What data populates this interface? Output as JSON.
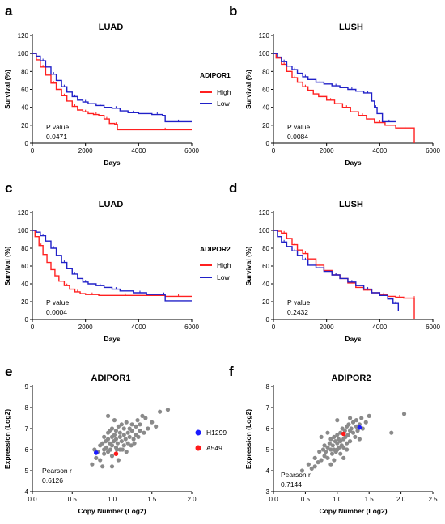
{
  "figure": {
    "legend_adipor1": {
      "title": "ADIPOR1",
      "items": [
        {
          "label": "High",
          "color": "#ff2020"
        },
        {
          "label": "Low",
          "color": "#2020c8"
        }
      ]
    },
    "legend_adipor2": {
      "title": "ADIPOR2",
      "items": [
        {
          "label": "High",
          "color": "#ff2020"
        },
        {
          "label": "Low",
          "color": "#2020c8"
        }
      ]
    },
    "legend_cells": {
      "items": [
        {
          "label": "H1299",
          "color": "#1a1aff"
        },
        {
          "label": "A549",
          "color": "#ff1a1a"
        }
      ]
    }
  },
  "chart_data": [
    {
      "panel": "a",
      "type": "line",
      "title": "LUAD",
      "xlabel": "Days",
      "ylabel": "Survival (%)",
      "xlim": [
        0,
        6000
      ],
      "ylim": [
        0,
        120
      ],
      "xticks": [
        0,
        2000,
        4000,
        6000
      ],
      "yticks": [
        0,
        20,
        40,
        60,
        80,
        100,
        120
      ],
      "annotation": {
        "label": "P value",
        "value": "0.0471"
      },
      "series": [
        {
          "name": "High",
          "color": "#ff2020",
          "x": [
            0,
            150,
            300,
            500,
            700,
            900,
            1100,
            1300,
            1500,
            1700,
            1900,
            2100,
            2300,
            2500,
            2700,
            2900,
            3100,
            3200,
            4000,
            6000
          ],
          "y": [
            100,
            93,
            85,
            76,
            67,
            60,
            53,
            47,
            41,
            37,
            35,
            33,
            32,
            31,
            27,
            22,
            21,
            15,
            15,
            15
          ]
        },
        {
          "name": "Low",
          "color": "#2020c8",
          "x": [
            0,
            150,
            300,
            500,
            700,
            900,
            1100,
            1300,
            1500,
            1700,
            1900,
            2100,
            2400,
            2700,
            3000,
            3300,
            3600,
            4000,
            4500,
            4900,
            5000,
            6000
          ],
          "y": [
            100,
            97,
            92,
            85,
            77,
            70,
            63,
            57,
            52,
            48,
            46,
            44,
            42,
            40,
            39,
            36,
            34,
            33,
            32,
            31,
            24,
            24
          ]
        }
      ]
    },
    {
      "panel": "b",
      "type": "line",
      "title": "LUSH",
      "xlabel": "Days",
      "ylabel": "Survival (%)",
      "xlim": [
        0,
        6000
      ],
      "ylim": [
        0,
        120
      ],
      "xticks": [
        0,
        2000,
        4000,
        6000
      ],
      "yticks": [
        0,
        20,
        40,
        60,
        80,
        100,
        120
      ],
      "annotation": {
        "label": "P value",
        "value": "0.0084"
      },
      "series": [
        {
          "name": "High",
          "color": "#ff2020",
          "x": [
            0,
            100,
            300,
            500,
            700,
            900,
            1100,
            1300,
            1500,
            1700,
            2000,
            2300,
            2600,
            2900,
            3200,
            3500,
            3800,
            4200,
            4600,
            5300,
            5300
          ],
          "y": [
            100,
            95,
            88,
            80,
            73,
            68,
            63,
            59,
            55,
            52,
            48,
            44,
            40,
            35,
            31,
            27,
            23,
            20,
            17,
            14,
            0
          ]
        },
        {
          "name": "Low",
          "color": "#2020c8",
          "x": [
            0,
            150,
            300,
            500,
            700,
            900,
            1100,
            1300,
            1600,
            1900,
            2200,
            2500,
            2800,
            3100,
            3400,
            3700,
            3800,
            3900,
            4100,
            4600
          ],
          "y": [
            100,
            96,
            91,
            86,
            82,
            78,
            74,
            71,
            68,
            66,
            64,
            62,
            60,
            58,
            56,
            47,
            40,
            33,
            24,
            24
          ]
        }
      ]
    },
    {
      "panel": "c",
      "type": "line",
      "title": "LUAD",
      "xlabel": "Days",
      "ylabel": "Survival (%)",
      "xlim": [
        0,
        6000
      ],
      "ylim": [
        0,
        120
      ],
      "xticks": [
        0,
        2000,
        4000,
        6000
      ],
      "yticks": [
        0,
        20,
        40,
        60,
        80,
        100,
        120
      ],
      "annotation": {
        "label": "P value",
        "value": "0.0004"
      },
      "series": [
        {
          "name": "High",
          "color": "#ff2020",
          "x": [
            0,
            100,
            250,
            400,
            550,
            700,
            850,
            1000,
            1200,
            1400,
            1600,
            1800,
            2000,
            2500,
            3000,
            4000,
            5000,
            6000
          ],
          "y": [
            100,
            93,
            83,
            73,
            64,
            56,
            49,
            43,
            38,
            34,
            31,
            29,
            28,
            27,
            27,
            27,
            26,
            26
          ]
        },
        {
          "name": "Low",
          "color": "#2020c8",
          "x": [
            0,
            150,
            300,
            500,
            700,
            900,
            1100,
            1300,
            1500,
            1700,
            1900,
            2100,
            2400,
            2700,
            3000,
            3300,
            3800,
            4300,
            4900,
            5000,
            6000
          ],
          "y": [
            100,
            98,
            94,
            88,
            80,
            72,
            64,
            57,
            51,
            46,
            42,
            40,
            38,
            36,
            34,
            32,
            30,
            28,
            28,
            21,
            21
          ]
        }
      ]
    },
    {
      "panel": "d",
      "type": "line",
      "title": "LUSH",
      "xlabel": "Days",
      "ylabel": "Survival (%)",
      "xlim": [
        0,
        6000
      ],
      "ylim": [
        0,
        120
      ],
      "xticks": [
        0,
        2000,
        4000,
        6000
      ],
      "yticks": [
        0,
        20,
        40,
        60,
        80,
        100,
        120
      ],
      "annotation": {
        "label": "P value",
        "value": "0.2432"
      },
      "series": [
        {
          "name": "High",
          "color": "#ff2020",
          "x": [
            0,
            150,
            300,
            500,
            700,
            900,
            1100,
            1300,
            1600,
            1900,
            2200,
            2500,
            2800,
            3100,
            3400,
            3700,
            4000,
            4300,
            4600,
            4900,
            5300,
            5300
          ],
          "y": [
            100,
            99,
            97,
            91,
            84,
            78,
            74,
            68,
            61,
            55,
            50,
            46,
            41,
            36,
            33,
            30,
            28,
            26,
            25,
            24,
            24,
            0
          ]
        },
        {
          "name": "Low",
          "color": "#2020c8",
          "x": [
            0,
            150,
            300,
            500,
            700,
            900,
            1100,
            1300,
            1600,
            1900,
            2200,
            2500,
            2800,
            3100,
            3400,
            3700,
            4000,
            4300,
            4500,
            4700
          ],
          "y": [
            100,
            93,
            87,
            82,
            77,
            72,
            67,
            61,
            58,
            54,
            50,
            46,
            42,
            38,
            34,
            30,
            27,
            23,
            18,
            10
          ]
        }
      ]
    },
    {
      "panel": "e",
      "type": "scatter",
      "title": "ADIPOR1",
      "xlabel": "Copy Number (Log2)",
      "ylabel": "Expression (Log2)",
      "xlim": [
        0.0,
        2.0
      ],
      "ylim": [
        4,
        9
      ],
      "xticks": [
        "0.0",
        "0.5",
        "1.0",
        "1.5",
        "2.0"
      ],
      "yticks": [
        4,
        5,
        6,
        7,
        8,
        9
      ],
      "annotation": {
        "label": "Pearson r",
        "value": "0.6126"
      },
      "highlights": [
        {
          "name": "H1299",
          "x": 0.8,
          "y": 5.85,
          "color": "#1a1aff"
        },
        {
          "name": "A549",
          "x": 1.05,
          "y": 5.8,
          "color": "#ff1a1a"
        }
      ],
      "points": [
        [
          0.75,
          5.3
        ],
        [
          0.8,
          5.6
        ],
        [
          0.78,
          6.0
        ],
        [
          0.82,
          5.9
        ],
        [
          0.85,
          6.2
        ],
        [
          0.85,
          5.5
        ],
        [
          0.88,
          6.3
        ],
        [
          0.9,
          6.0
        ],
        [
          0.9,
          6.6
        ],
        [
          0.9,
          5.8
        ],
        [
          0.92,
          6.4
        ],
        [
          0.93,
          6.1
        ],
        [
          0.95,
          6.5
        ],
        [
          0.95,
          5.9
        ],
        [
          0.95,
          6.8
        ],
        [
          0.97,
          6.3
        ],
        [
          0.98,
          6.0
        ],
        [
          1.0,
          6.6
        ],
        [
          1.0,
          6.2
        ],
        [
          1.0,
          7.0
        ],
        [
          1.0,
          5.7
        ],
        [
          1.02,
          6.4
        ],
        [
          1.03,
          6.7
        ],
        [
          1.05,
          6.1
        ],
        [
          1.05,
          6.9
        ],
        [
          1.05,
          6.5
        ],
        [
          1.07,
          6.3
        ],
        [
          1.08,
          7.1
        ],
        [
          1.1,
          6.6
        ],
        [
          1.1,
          6.0
        ],
        [
          1.1,
          6.8
        ],
        [
          1.12,
          7.2
        ],
        [
          1.12,
          6.4
        ],
        [
          1.15,
          6.7
        ],
        [
          1.15,
          6.2
        ],
        [
          1.15,
          7.0
        ],
        [
          1.17,
          6.5
        ],
        [
          1.18,
          7.3
        ],
        [
          1.2,
          6.8
        ],
        [
          1.2,
          6.3
        ],
        [
          1.22,
          7.0
        ],
        [
          1.22,
          6.6
        ],
        [
          1.25,
          7.2
        ],
        [
          1.25,
          6.9
        ],
        [
          1.27,
          6.5
        ],
        [
          1.3,
          7.1
        ],
        [
          1.3,
          6.7
        ],
        [
          1.32,
          7.4
        ],
        [
          1.35,
          6.9
        ],
        [
          1.35,
          7.2
        ],
        [
          1.4,
          6.8
        ],
        [
          1.42,
          7.5
        ],
        [
          1.45,
          7.0
        ],
        [
          1.5,
          7.3
        ],
        [
          1.55,
          7.1
        ],
        [
          1.6,
          7.8
        ],
        [
          1.7,
          7.9
        ],
        [
          0.95,
          7.6
        ],
        [
          1.0,
          5.2
        ],
        [
          1.08,
          5.5
        ],
        [
          1.18,
          5.9
        ],
        [
          0.88,
          5.2
        ],
        [
          1.03,
          7.4
        ],
        [
          1.13,
          6.0
        ],
        [
          1.28,
          6.3
        ],
        [
          1.38,
          7.6
        ],
        [
          0.97,
          6.9
        ],
        [
          1.06,
          6.0
        ],
        [
          1.24,
          6.2
        ],
        [
          1.33,
          6.6
        ]
      ]
    },
    {
      "panel": "f",
      "type": "scatter",
      "title": "ADIPOR2",
      "xlabel": "Copy Number (Log2)",
      "ylabel": "Expression (Log2)",
      "xlim": [
        0.0,
        2.5
      ],
      "ylim": [
        3,
        8
      ],
      "xticks": [
        "0.0",
        "0.5",
        "1.0",
        "1.5",
        "2.0",
        "2.5"
      ],
      "yticks": [
        3,
        4,
        5,
        6,
        7,
        8
      ],
      "annotation": {
        "label": "Pearson r",
        "value": "0.7144"
      },
      "highlights": [
        {
          "name": "H1299",
          "x": 1.35,
          "y": 6.05,
          "color": "#1a1aff"
        },
        {
          "name": "A549",
          "x": 1.1,
          "y": 5.75,
          "color": "#ff1a1a"
        }
      ],
      "points": [
        [
          0.45,
          4.0
        ],
        [
          0.55,
          4.3
        ],
        [
          0.6,
          4.1
        ],
        [
          0.65,
          4.6
        ],
        [
          0.7,
          4.4
        ],
        [
          0.72,
          4.9
        ],
        [
          0.75,
          4.5
        ],
        [
          0.78,
          5.0
        ],
        [
          0.8,
          4.7
        ],
        [
          0.8,
          5.2
        ],
        [
          0.82,
          4.9
        ],
        [
          0.85,
          5.1
        ],
        [
          0.85,
          4.6
        ],
        [
          0.88,
          5.3
        ],
        [
          0.9,
          5.0
        ],
        [
          0.9,
          5.5
        ],
        [
          0.92,
          4.8
        ],
        [
          0.93,
          5.2
        ],
        [
          0.95,
          5.6
        ],
        [
          0.95,
          5.0
        ],
        [
          0.97,
          5.4
        ],
        [
          0.98,
          4.9
        ],
        [
          1.0,
          5.3
        ],
        [
          1.0,
          5.7
        ],
        [
          1.0,
          5.0
        ],
        [
          1.02,
          5.5
        ],
        [
          1.03,
          5.1
        ],
        [
          1.05,
          5.8
        ],
        [
          1.05,
          5.4
        ],
        [
          1.07,
          5.2
        ],
        [
          1.08,
          6.0
        ],
        [
          1.1,
          5.5
        ],
        [
          1.1,
          5.1
        ],
        [
          1.12,
          5.9
        ],
        [
          1.13,
          5.6
        ],
        [
          1.15,
          6.1
        ],
        [
          1.15,
          5.3
        ],
        [
          1.17,
          5.7
        ],
        [
          1.18,
          6.2
        ],
        [
          1.2,
          5.9
        ],
        [
          1.2,
          5.4
        ],
        [
          1.22,
          6.0
        ],
        [
          1.25,
          5.8
        ],
        [
          1.25,
          6.3
        ],
        [
          1.28,
          5.6
        ],
        [
          1.3,
          6.1
        ],
        [
          1.3,
          6.4
        ],
        [
          1.32,
          5.9
        ],
        [
          1.35,
          6.2
        ],
        [
          1.38,
          6.5
        ],
        [
          1.4,
          6.0
        ],
        [
          1.45,
          6.3
        ],
        [
          1.5,
          6.6
        ],
        [
          1.85,
          5.8
        ],
        [
          2.05,
          6.7
        ],
        [
          0.95,
          4.5
        ],
        [
          1.05,
          4.8
        ],
        [
          1.15,
          5.0
        ],
        [
          0.75,
          5.6
        ],
        [
          1.0,
          6.4
        ],
        [
          1.2,
          6.5
        ],
        [
          0.85,
          5.8
        ],
        [
          1.1,
          4.6
        ],
        [
          0.65,
          4.2
        ],
        [
          1.35,
          5.5
        ],
        [
          0.9,
          4.3
        ]
      ]
    }
  ]
}
